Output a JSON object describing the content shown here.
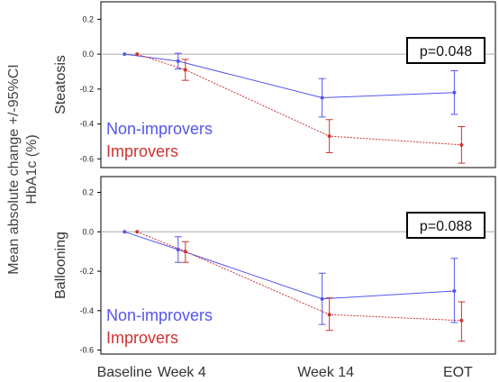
{
  "y_axis_title_line1": "Mean absolute change +/-95%CI",
  "y_axis_title_line2": "HbA1c (%)",
  "colors": {
    "non_improvers": "#5555ee",
    "improvers": "#cc3333",
    "zero_line": "#aaaaaa",
    "frame": "#000000"
  },
  "chart_data": [
    {
      "type": "line",
      "panel_label": "Steatosis",
      "categories": [
        "Baseline",
        "Week 4",
        "Week 14",
        "EOT"
      ],
      "ylim": [
        -0.65,
        0.3
      ],
      "yticks": [
        "0.2",
        "0.0",
        "-0.2",
        "-0.4",
        "-0.6"
      ],
      "annotation": "p=0.048",
      "legend_position": "bottom-left",
      "series": [
        {
          "name": "Non-improvers",
          "line": "solid",
          "points": [
            {
              "x": "Baseline",
              "y": 0.0
            },
            {
              "x": "Week 4",
              "y": -0.04,
              "lo": -0.085,
              "hi": 0.005
            },
            {
              "x": "Week 14",
              "y": -0.25,
              "lo": -0.36,
              "hi": -0.14
            },
            {
              "x": "EOT",
              "y": -0.22,
              "lo": -0.345,
              "hi": -0.095
            }
          ]
        },
        {
          "name": "Improvers",
          "line": "dotted",
          "points": [
            {
              "x": "Baseline",
              "y": 0.0
            },
            {
              "x": "Week 4",
              "y": -0.09,
              "lo": -0.15,
              "hi": -0.03
            },
            {
              "x": "Week 14",
              "y": -0.47,
              "lo": -0.565,
              "hi": -0.375
            },
            {
              "x": "EOT",
              "y": -0.52,
              "lo": -0.625,
              "hi": -0.415
            }
          ]
        }
      ]
    },
    {
      "type": "line",
      "panel_label": "Ballooning",
      "categories": [
        "Baseline",
        "Week 4",
        "Week 14",
        "EOT"
      ],
      "ylim": [
        -0.62,
        0.28
      ],
      "yticks": [
        "0.2",
        "0.0",
        "-0.2",
        "-0.4",
        "-0.6"
      ],
      "annotation": "p=0.088",
      "legend_position": "bottom-left",
      "series": [
        {
          "name": "Non-improvers",
          "line": "solid",
          "points": [
            {
              "x": "Baseline",
              "y": 0.0
            },
            {
              "x": "Week 4",
              "y": -0.09,
              "lo": -0.155,
              "hi": -0.025
            },
            {
              "x": "Week 14",
              "y": -0.34,
              "lo": -0.47,
              "hi": -0.21
            },
            {
              "x": "EOT",
              "y": -0.3,
              "lo": -0.46,
              "hi": -0.135
            }
          ]
        },
        {
          "name": "Improvers",
          "line": "dotted",
          "points": [
            {
              "x": "Baseline",
              "y": 0.0
            },
            {
              "x": "Week 4",
              "y": -0.1,
              "lo": -0.155,
              "hi": -0.05
            },
            {
              "x": "Week 14",
              "y": -0.42,
              "lo": -0.5,
              "hi": -0.335
            },
            {
              "x": "EOT",
              "y": -0.45,
              "lo": -0.555,
              "hi": -0.355
            }
          ]
        }
      ]
    }
  ]
}
